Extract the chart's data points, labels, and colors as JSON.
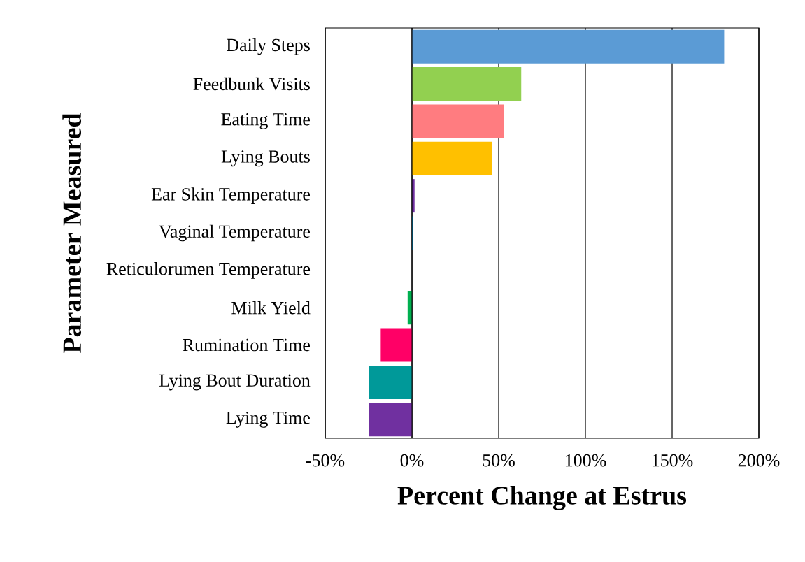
{
  "chart_data": {
    "type": "bar",
    "orientation": "horizontal",
    "xlabel": "Percent Change at Estrus",
    "ylabel": "Parameter Measured",
    "categories": [
      "Daily Steps",
      "Feedbunk Visits",
      "Eating Time",
      "Lying Bouts",
      "Ear Skin Temperature",
      "Vaginal Temperature",
      "Reticulorumen Temperature",
      "Milk Yield",
      "Rumination Time",
      "Lying Bout Duration",
      "Lying Time"
    ],
    "values": [
      180,
      63,
      53,
      46,
      1.5,
      0.8,
      0,
      -2.5,
      -18,
      -25,
      -25
    ],
    "colors": [
      "#5b9bd5",
      "#92d050",
      "#ff7c80",
      "#ffc000",
      "#7030a0",
      "#00b0f0",
      "#0070c0",
      "#00b050",
      "#ff0066",
      "#009999",
      "#7030a0"
    ],
    "xlim": [
      -50,
      200
    ],
    "xticks": [
      {
        "value": -50,
        "label": "-50%"
      },
      {
        "value": 0,
        "label": "0%"
      },
      {
        "value": 50,
        "label": "50%"
      },
      {
        "value": 100,
        "label": "100%"
      },
      {
        "value": 150,
        "label": "150%"
      },
      {
        "value": 200,
        "label": "200%"
      }
    ],
    "grid": "x"
  }
}
